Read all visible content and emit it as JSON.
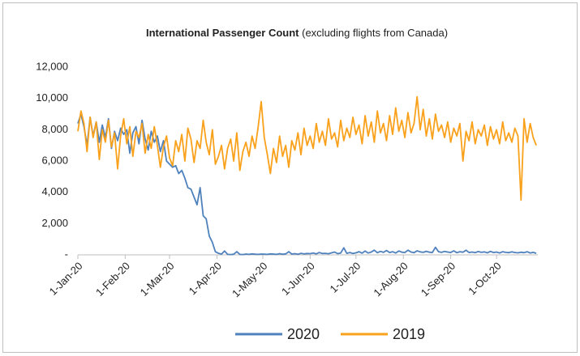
{
  "chart_data": {
    "type": "line",
    "title": "International Passenger Count",
    "subtitle": "(excluding flights from Canada)",
    "x": [
      0,
      2,
      4,
      6,
      8,
      10,
      12,
      14,
      16,
      18,
      20,
      22,
      24,
      26,
      28,
      30,
      32,
      34,
      36,
      38,
      40,
      42,
      44,
      46,
      48,
      50,
      52,
      54,
      56,
      58,
      60,
      62,
      64,
      66,
      68,
      70,
      72,
      74,
      76,
      78,
      80,
      82,
      84,
      86,
      88,
      90,
      92,
      94,
      96,
      98,
      100,
      102,
      104,
      106,
      108,
      110,
      112,
      114,
      116,
      118,
      120,
      122,
      124,
      126,
      128,
      130,
      132,
      134,
      136,
      138,
      140,
      142,
      144,
      146,
      148,
      150,
      152,
      154,
      156,
      158,
      160,
      162,
      164,
      166,
      168,
      170,
      172,
      174,
      176,
      178,
      180,
      182,
      184,
      186,
      188,
      190,
      192,
      194,
      196,
      198,
      200,
      202,
      204,
      206,
      208,
      210,
      212,
      214,
      216,
      218,
      220,
      222,
      224,
      226,
      228,
      230,
      232,
      234,
      236,
      238,
      240,
      242,
      244,
      246,
      248,
      250,
      252,
      254,
      256,
      258,
      260,
      262,
      264,
      266,
      268,
      270,
      272,
      274,
      276,
      278,
      280,
      282,
      284,
      286,
      288,
      290,
      292,
      294,
      296,
      298,
      300
    ],
    "xlim": [
      0,
      301
    ],
    "xticks": [
      {
        "value": 0,
        "label": "1-Jan-20"
      },
      {
        "value": 31,
        "label": "1-Feb-20"
      },
      {
        "value": 60,
        "label": "1-Mar-20"
      },
      {
        "value": 91,
        "label": "1-Apr-20"
      },
      {
        "value": 121,
        "label": "1-May-20"
      },
      {
        "value": 152,
        "label": "1-Jun-20"
      },
      {
        "value": 182,
        "label": "1-Jul-20"
      },
      {
        "value": 213,
        "label": "1-Aug-20"
      },
      {
        "value": 244,
        "label": "1-Sep-20"
      },
      {
        "value": 274,
        "label": "1-Oct-20"
      }
    ],
    "ylim": [
      0,
      12000
    ],
    "yticks": [
      {
        "value": 0,
        "label": "-"
      },
      {
        "value": 2000,
        "label": "2,000"
      },
      {
        "value": 4000,
        "label": "4,000"
      },
      {
        "value": 6000,
        "label": "6,000"
      },
      {
        "value": 8000,
        "label": "8,000"
      },
      {
        "value": 10000,
        "label": "10,000"
      },
      {
        "value": 12000,
        "label": "12,000"
      }
    ],
    "grid": false,
    "legend": "bottom",
    "series": [
      {
        "name": "2020",
        "color": "#4f81bd",
        "values": [
          8400,
          9000,
          8200,
          7000,
          8800,
          7600,
          8500,
          7200,
          8300,
          7500,
          8700,
          6800,
          7900,
          7300,
          8100,
          7700,
          8000,
          6500,
          7800,
          8200,
          7100,
          8600,
          7400,
          6700,
          7900,
          7200,
          7600,
          6600,
          7300,
          6000,
          5800,
          5600,
          5700,
          5200,
          5400,
          4900,
          4300,
          4200,
          3700,
          3200,
          4300,
          2500,
          2300,
          1200,
          800,
          200,
          100,
          50,
          250,
          30,
          20,
          40,
          200,
          30,
          20,
          50,
          30,
          60,
          40,
          30,
          50,
          40,
          30,
          60,
          50,
          30,
          80,
          40,
          60,
          200,
          50,
          80,
          40,
          100,
          60,
          90,
          80,
          120,
          60,
          150,
          90,
          100,
          70,
          130,
          180,
          80,
          120,
          450,
          100,
          150,
          90,
          130,
          200,
          110,
          250,
          120,
          180,
          300,
          140,
          220,
          160,
          280,
          150,
          200,
          120,
          250,
          170,
          150,
          300,
          180,
          140,
          260,
          190,
          160,
          230,
          170,
          150,
          480,
          200,
          160,
          220,
          180,
          150,
          260,
          140,
          200,
          170,
          300,
          150,
          180,
          140,
          210,
          160,
          190,
          130,
          220,
          150,
          180,
          120,
          200,
          160,
          140,
          190,
          150,
          130,
          170,
          140,
          200,
          120,
          160,
          100
        ]
      },
      {
        "name": "2019",
        "color": "#f9a11b",
        "values": [
          7900,
          9200,
          8400,
          6600,
          8800,
          7500,
          8500,
          6100,
          8000,
          7200,
          8600,
          6900,
          7800,
          5500,
          7600,
          8700,
          7100,
          8200,
          6300,
          7900,
          7500,
          8400,
          6500,
          7700,
          6800,
          8200,
          7000,
          5600,
          6900,
          7600,
          6200,
          5700,
          7300,
          6600,
          7700,
          6000,
          8100,
          7400,
          5900,
          7300,
          6800,
          8600,
          7200,
          6400,
          8000,
          5800,
          6300,
          7000,
          5500,
          6800,
          7400,
          6000,
          7800,
          5400,
          6600,
          7200,
          6300,
          7600,
          6800,
          8200,
          9800,
          7500,
          6400,
          5200,
          6800,
          5900,
          7600,
          6300,
          7000,
          5600,
          7300,
          6700,
          7800,
          6400,
          8100,
          7000,
          7600,
          6800,
          8400,
          7200,
          7900,
          7000,
          8700,
          7400,
          7800,
          6900,
          8600,
          7300,
          8100,
          7500,
          8800,
          7700,
          8300,
          7100,
          8900,
          7600,
          8500,
          7200,
          9200,
          7800,
          8400,
          7300,
          8900,
          7700,
          9400,
          7900,
          8600,
          7500,
          9100,
          7800,
          8400,
          10100,
          8000,
          9300,
          7600,
          8700,
          7400,
          9000,
          7900,
          8300,
          7500,
          8500,
          7200,
          8100,
          7600,
          8400,
          6000,
          7900,
          7300,
          8500,
          7100,
          8000,
          7600,
          8300,
          7000,
          8200,
          7400,
          8000,
          7100,
          8500,
          7300,
          7800,
          7200,
          8100,
          7600,
          3500,
          8700,
          7200,
          8400,
          7500,
          7000
        ]
      }
    ]
  }
}
